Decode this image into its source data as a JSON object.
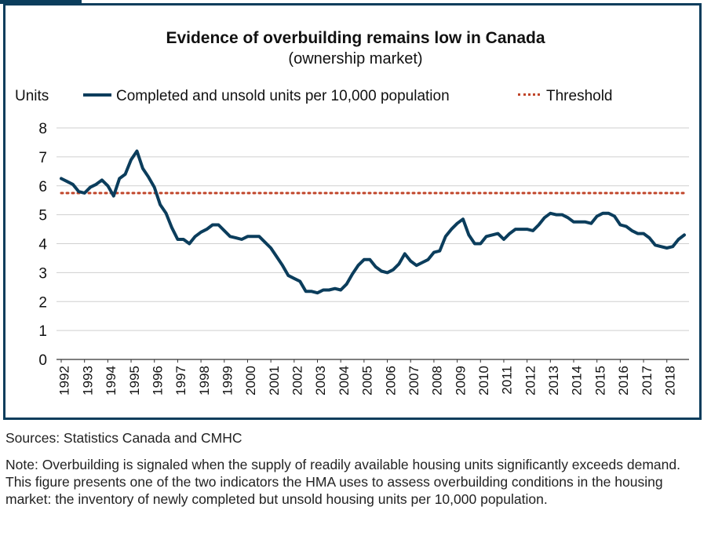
{
  "chart_data": {
    "type": "line",
    "title": "Evidence of overbuilding remains low in Canada",
    "subtitle": "(ownership market)",
    "ylabel": "Units",
    "ylim": [
      0,
      8
    ],
    "yticks": [
      "0",
      "1",
      "2",
      "3",
      "4",
      "5",
      "6",
      "7",
      "8"
    ],
    "xlim": [
      1992.0,
      2018.75
    ],
    "xticks": [
      "1992",
      "1993",
      "1994",
      "1995",
      "1996",
      "1997",
      "1998",
      "1999",
      "2000",
      "2001",
      "2002",
      "2003",
      "2004",
      "2005",
      "2006",
      "2007",
      "2008",
      "2009",
      "2010",
      "2011",
      "2012",
      "2013",
      "2014",
      "2015",
      "2016",
      "2017",
      "2018"
    ],
    "grid": true,
    "legend_position": "top",
    "series": [
      {
        "name": "Completed and unsold units per 10,000 population",
        "color": "#0b3d5c",
        "x": [
          1992.0,
          1992.25,
          1992.5,
          1992.75,
          1993.0,
          1993.25,
          1993.5,
          1993.75,
          1994.0,
          1994.25,
          1994.5,
          1994.75,
          1995.0,
          1995.25,
          1995.5,
          1995.75,
          1996.0,
          1996.25,
          1996.5,
          1996.75,
          1997.0,
          1997.25,
          1997.5,
          1997.75,
          1998.0,
          1998.25,
          1998.5,
          1998.75,
          1999.0,
          1999.25,
          1999.5,
          1999.75,
          2000.0,
          2000.25,
          2000.5,
          2000.75,
          2001.0,
          2001.25,
          2001.5,
          2001.75,
          2002.0,
          2002.25,
          2002.5,
          2002.75,
          2003.0,
          2003.25,
          2003.5,
          2003.75,
          2004.0,
          2004.25,
          2004.5,
          2004.75,
          2005.0,
          2005.25,
          2005.5,
          2005.75,
          2006.0,
          2006.25,
          2006.5,
          2006.75,
          2007.0,
          2007.25,
          2007.5,
          2007.75,
          2008.0,
          2008.25,
          2008.5,
          2008.75,
          2009.0,
          2009.25,
          2009.5,
          2009.75,
          2010.0,
          2010.25,
          2010.5,
          2010.75,
          2011.0,
          2011.25,
          2011.5,
          2011.75,
          2012.0,
          2012.25,
          2012.5,
          2012.75,
          2013.0,
          2013.25,
          2013.5,
          2013.75,
          2014.0,
          2014.25,
          2014.5,
          2014.75,
          2015.0,
          2015.25,
          2015.5,
          2015.75,
          2016.0,
          2016.25,
          2016.5,
          2016.75,
          2017.0,
          2017.25,
          2017.5,
          2017.75,
          2018.0,
          2018.25,
          2018.5,
          2018.75
        ],
        "values": [
          6.25,
          6.15,
          6.05,
          5.8,
          5.75,
          5.95,
          6.05,
          6.2,
          6.0,
          5.65,
          6.25,
          6.4,
          6.9,
          7.2,
          6.6,
          6.3,
          5.95,
          5.35,
          5.05,
          4.55,
          4.15,
          4.15,
          4.0,
          4.25,
          4.4,
          4.5,
          4.65,
          4.65,
          4.45,
          4.25,
          4.2,
          4.15,
          4.25,
          4.25,
          4.25,
          4.05,
          3.85,
          3.55,
          3.25,
          2.9,
          2.8,
          2.7,
          2.35,
          2.35,
          2.3,
          2.4,
          2.4,
          2.45,
          2.4,
          2.6,
          2.95,
          3.25,
          3.45,
          3.45,
          3.2,
          3.05,
          3.0,
          3.1,
          3.3,
          3.65,
          3.4,
          3.25,
          3.35,
          3.45,
          3.7,
          3.75,
          4.25,
          4.5,
          4.7,
          4.85,
          4.3,
          4.0,
          4.0,
          4.25,
          4.3,
          4.35,
          4.15,
          4.35,
          4.5,
          4.5,
          4.5,
          4.45,
          4.65,
          4.9,
          5.05,
          5.0,
          5.0,
          4.9,
          4.75,
          4.75,
          4.75,
          4.7,
          4.95,
          5.05,
          5.05,
          4.95,
          4.65,
          4.6,
          4.45,
          4.35,
          4.35,
          4.2,
          3.95,
          3.9,
          3.85,
          3.9,
          4.15,
          4.3
        ]
      },
      {
        "name": "Threshold",
        "color": "#c0452a",
        "x": [
          1992.0,
          2018.75
        ],
        "values": [
          5.75,
          5.75
        ]
      }
    ]
  },
  "footer": {
    "sources": "Sources: Statistics Canada and CMHC",
    "note": "Note: Overbuilding is signaled when the supply of readily available housing units significantly exceeds demand. This figure presents one of the two indicators the HMA uses to assess overbuilding conditions in the housing market: the inventory of newly completed but unsold housing units per 10,000 population."
  }
}
